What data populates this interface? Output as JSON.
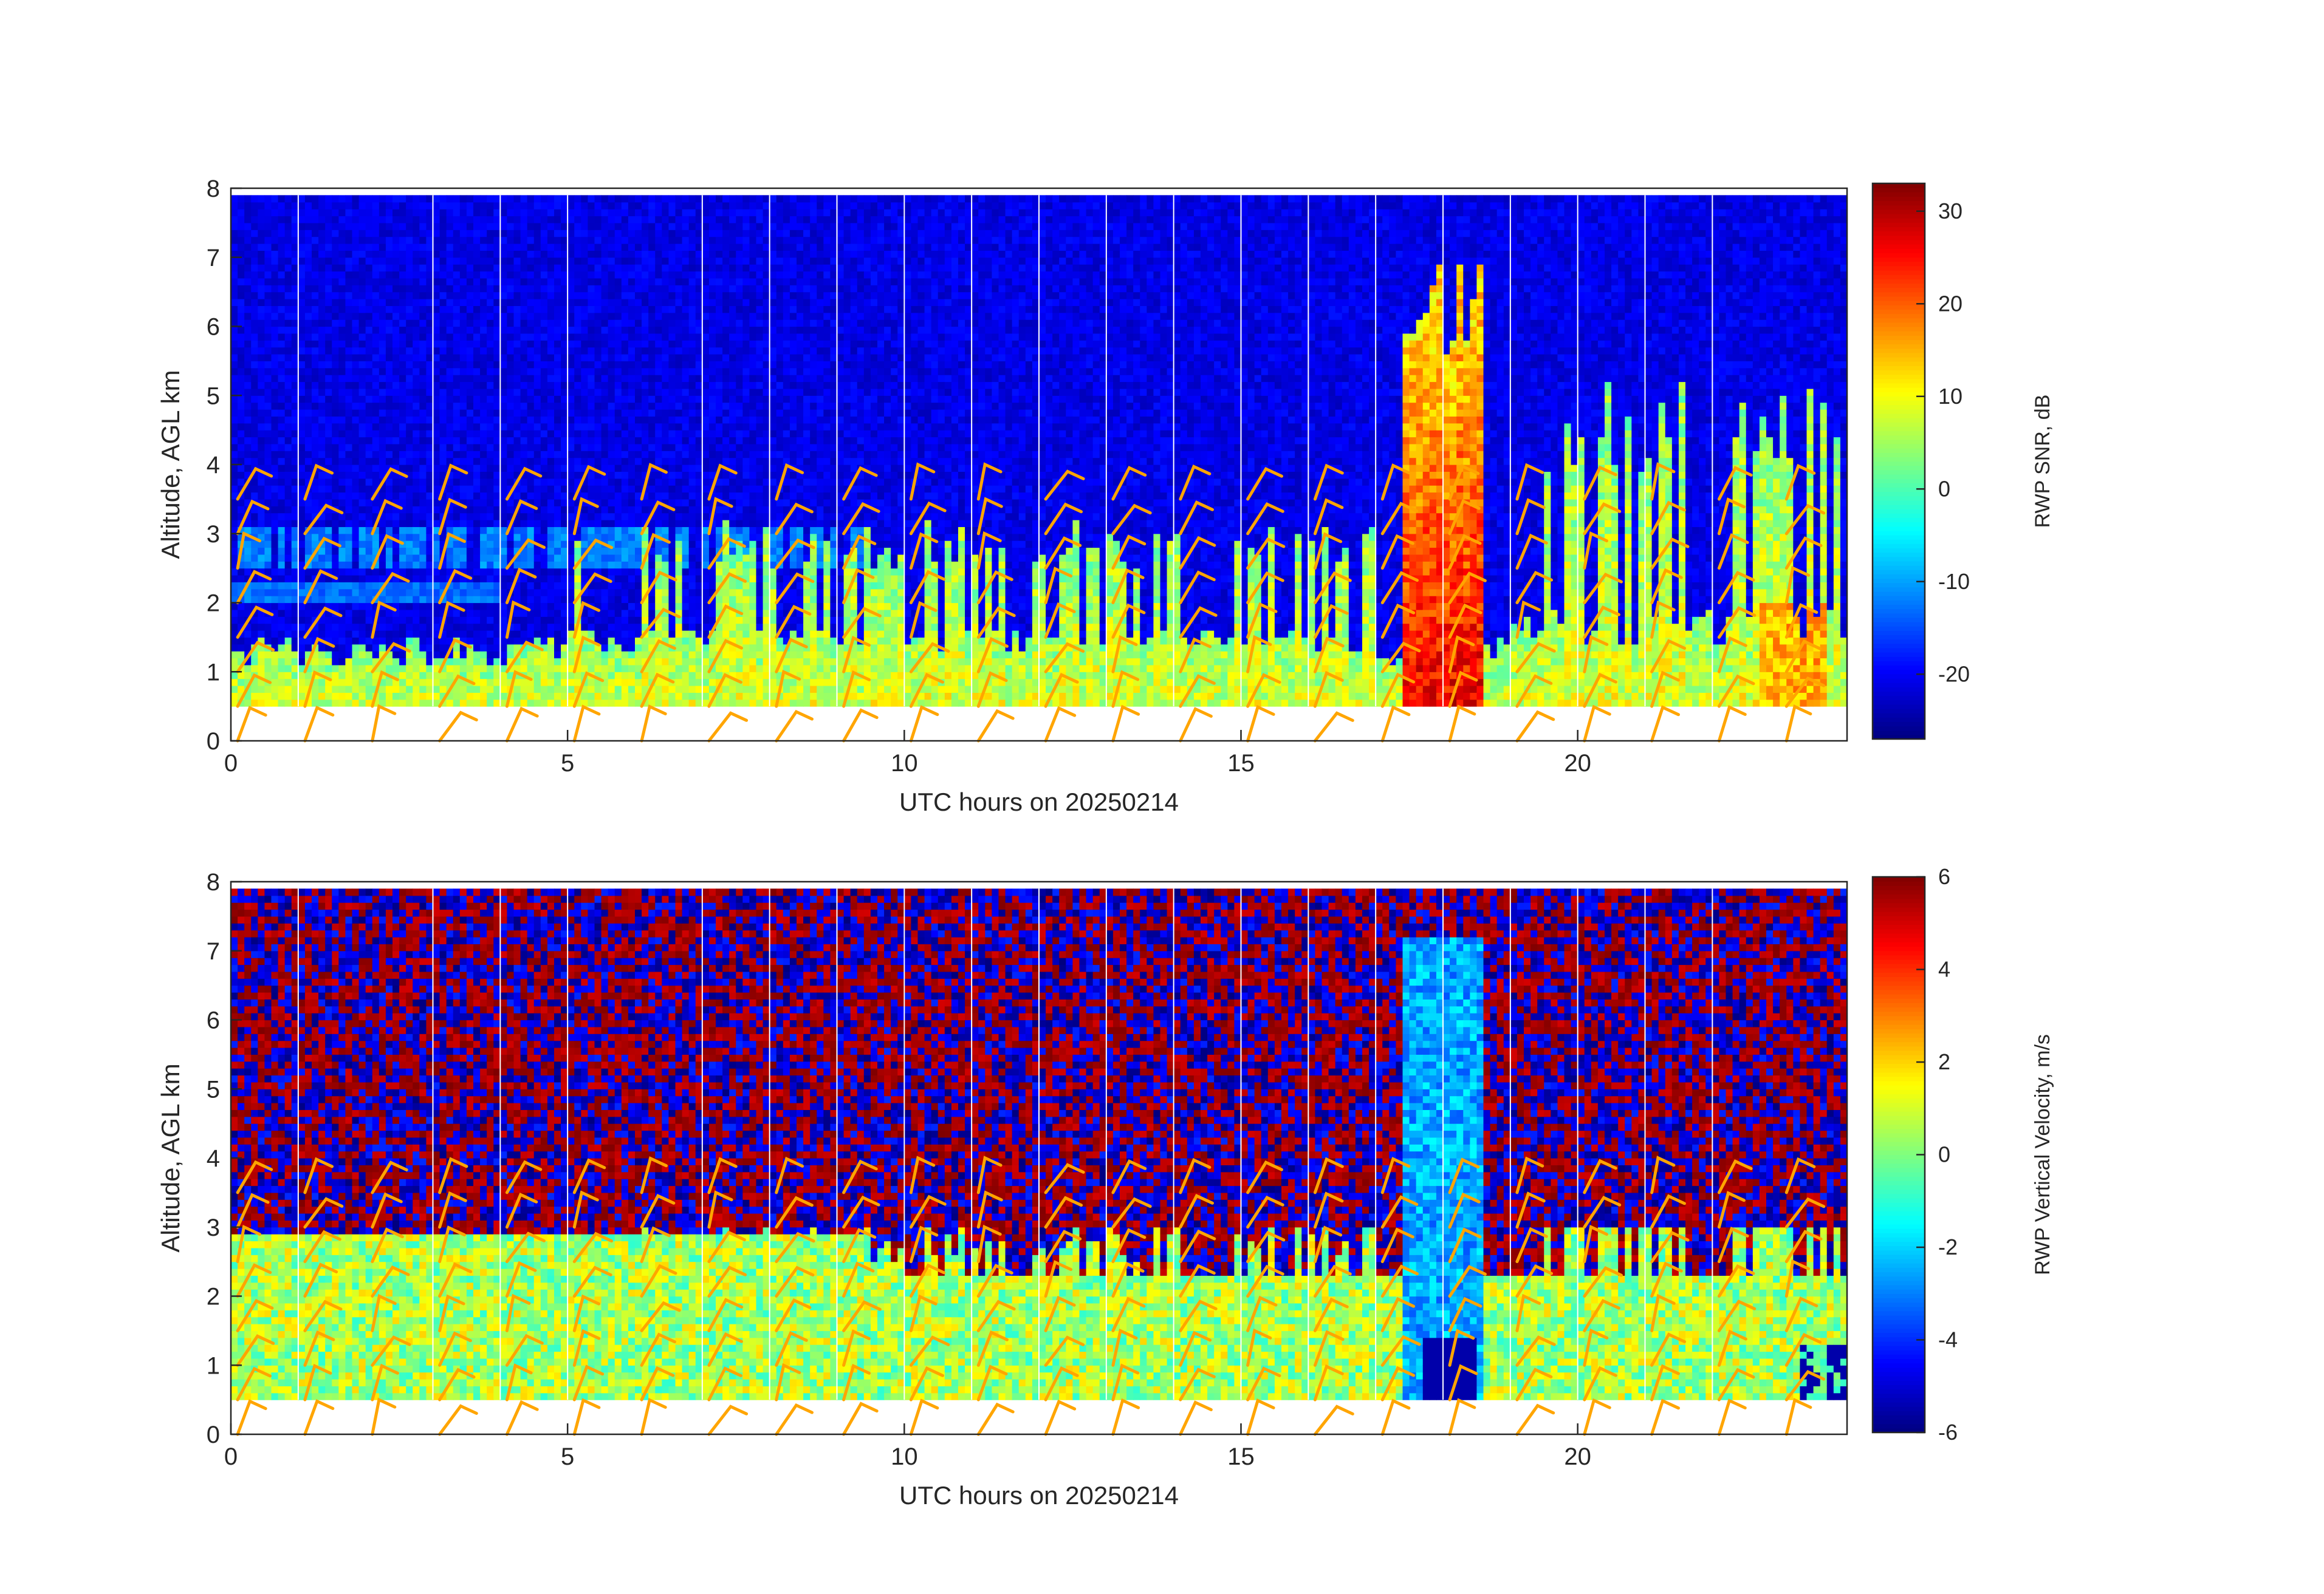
{
  "colors": {
    "barb": "#FFA500",
    "hourline": "#FFFFFF",
    "axis": "#262626",
    "jet": [
      "#00007F",
      "#0000FF",
      "#007FFF",
      "#00FFFF",
      "#7FFF7F",
      "#FFFF00",
      "#FF7F00",
      "#FF0000",
      "#7F0000"
    ]
  },
  "chart_data": [
    {
      "type": "heatmap",
      "panel": "top",
      "xlabel": "UTC hours on 20250214",
      "ylabel": "Altitude, AGL km",
      "xlim": [
        0,
        24
      ],
      "ylim": [
        0,
        8
      ],
      "xticks": [
        0,
        5,
        10,
        15,
        20
      ],
      "yticks": [
        0,
        1,
        2,
        3,
        4,
        5,
        6,
        7,
        8
      ],
      "data_altitude_range_km": [
        0.5,
        7.9
      ],
      "colorbar": {
        "label": "RWP SNR, dB",
        "range": [
          -27,
          33
        ],
        "ticks": [
          -20,
          -10,
          0,
          10,
          20,
          30
        ],
        "colormap": "jet"
      },
      "hour_lines": [
        1,
        3,
        4,
        5,
        7,
        8,
        9,
        10,
        11,
        12,
        13,
        14,
        15,
        16,
        17,
        18,
        19,
        20,
        21,
        22
      ],
      "background_value": -20,
      "features": [
        {
          "desc": "near-surface echo layer",
          "x_range": [
            0,
            24
          ],
          "top_km": 1.3,
          "value": 5
        },
        {
          "desc": "cloud layer",
          "x_range": [
            0.5,
            9
          ],
          "y_km": [
            2.6,
            3.1
          ],
          "value": -12
        },
        {
          "desc": "mid-level convective cells",
          "x_range": [
            5,
            17
          ],
          "top_km": 3.0,
          "value": 3
        },
        {
          "desc": "deep convective core",
          "x_range": [
            17.4,
            18.6
          ],
          "top_km": 7.2,
          "value": 25
        },
        {
          "desc": "late convective cells",
          "x_range": [
            19,
            24
          ],
          "top_km": 5.3,
          "value": 10
        }
      ],
      "wind_barbs": {
        "times_h": [
          0,
          1,
          2,
          3,
          4,
          5,
          6,
          7,
          8,
          9,
          10,
          11,
          12,
          13,
          14,
          15,
          16,
          17,
          18,
          19,
          20,
          21,
          22,
          23
        ],
        "altitudes_km": [
          0,
          0.5,
          1.0,
          1.5,
          2.0,
          2.5,
          3.0,
          3.5
        ]
      }
    },
    {
      "type": "heatmap",
      "panel": "bottom",
      "xlabel": "UTC hours on 20250214",
      "ylabel": "Altitude, AGL km",
      "xlim": [
        0,
        24
      ],
      "ylim": [
        0,
        8
      ],
      "xticks": [
        0,
        5,
        10,
        15,
        20
      ],
      "yticks": [
        0,
        1,
        2,
        3,
        4,
        5,
        6,
        7,
        8
      ],
      "data_altitude_range_km": [
        0.5,
        7.9
      ],
      "colorbar": {
        "label": "RWP Vertical Velocity, m/s",
        "range": [
          -6,
          6
        ],
        "ticks": [
          -6,
          -4,
          -2,
          0,
          2,
          4,
          6
        ],
        "colormap": "jet"
      },
      "hour_lines": [
        1,
        3,
        4,
        5,
        7,
        8,
        9,
        10,
        11,
        12,
        13,
        14,
        15,
        16,
        17,
        18,
        19,
        20,
        21,
        22
      ],
      "background": "noise, alternating -6 and +6",
      "features": [
        {
          "desc": "weak motion in echo layers",
          "x_range": [
            0,
            24
          ],
          "top_km": 2.9,
          "value": 0.5
        },
        {
          "desc": "downdraft column",
          "x_range": [
            17.5,
            18.5
          ],
          "top_km": 7.2,
          "value": -2.5
        },
        {
          "desc": "strong downdraft near surface",
          "x_range": [
            17.7,
            18.5
          ],
          "top_km": 1.4,
          "value": -5.5
        }
      ],
      "wind_barbs": {
        "times_h": [
          0,
          1,
          2,
          3,
          4,
          5,
          6,
          7,
          8,
          9,
          10,
          11,
          12,
          13,
          14,
          15,
          16,
          17,
          18,
          19,
          20,
          21,
          22,
          23
        ],
        "altitudes_km": [
          0,
          0.5,
          1.0,
          1.5,
          2.0,
          2.5,
          3.0,
          3.5
        ]
      }
    }
  ]
}
